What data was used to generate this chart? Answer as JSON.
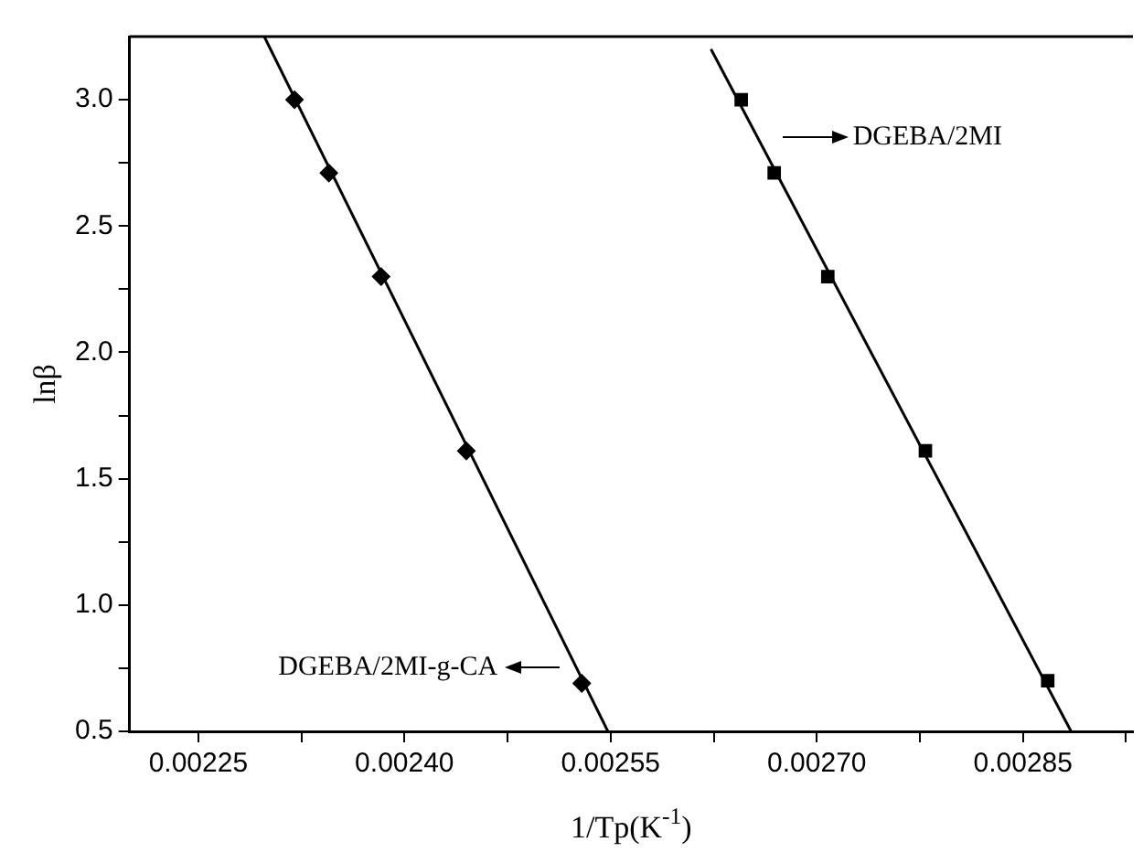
{
  "chart_data": {
    "type": "scatter",
    "xlabel": "1/Tp(K$^{-1}$)",
    "ylabel": "lnβ",
    "xlim": [
      0.0022,
      0.00293
    ],
    "ylim": [
      0.5,
      3.25
    ],
    "xticks": [
      {
        "value": 0.00225,
        "label": "0.00225"
      },
      {
        "value": 0.002325,
        "label": null
      },
      {
        "value": 0.0024,
        "label": "0.00240"
      },
      {
        "value": 0.002475,
        "label": null
      },
      {
        "value": 0.00255,
        "label": "0.00255"
      },
      {
        "value": 0.002625,
        "label": null
      },
      {
        "value": 0.0027,
        "label": "0.00270"
      },
      {
        "value": 0.002775,
        "label": null
      },
      {
        "value": 0.00285,
        "label": "0.00285"
      },
      {
        "value": 0.002925,
        "label": null
      }
    ],
    "yticks": [
      0.5,
      {
        "value": 0.75,
        "label": null
      },
      {
        "value": 1,
        "label": "1.0"
      },
      {
        "value": 1.25,
        "label": null
      },
      1.5,
      {
        "value": 1.75,
        "label": null
      },
      {
        "value": 2,
        "label": "2.0"
      },
      {
        "value": 2.25,
        "label": null
      },
      2.5,
      {
        "value": 2.75,
        "label": null
      },
      {
        "value": 3,
        "label": "3.0"
      }
    ],
    "grid": false,
    "legend": false,
    "annotations": [
      "DGEBA/2MI-g-CA",
      "DGEBA/2MI"
    ],
    "series": [
      {
        "color": "#000000",
        "marker": "diamond",
        "x": [
          0.00232,
          0.002345,
          0.002383,
          0.002445,
          0.002529
        ],
        "values": [
          3.0,
          2.71,
          2.3,
          1.61,
          0.69
        ]
      },
      {
        "type": "line",
        "color": "#000000",
        "marker": "none",
        "x": [
          0.002298,
          0.002548
        ],
        "values": [
          3.25,
          0.5
        ]
      },
      {
        "color": "#000000",
        "marker": "square",
        "x": [
          0.002645,
          0.002669,
          0.002708,
          0.002779,
          0.002868
        ],
        "values": [
          3.0,
          2.71,
          2.3,
          1.61,
          0.7
        ]
      },
      {
        "type": "line",
        "color": "#000000",
        "marker": "none",
        "x": [
          0.002623,
          0.002885
        ],
        "values": [
          3.2,
          0.5
        ]
      }
    ]
  }
}
